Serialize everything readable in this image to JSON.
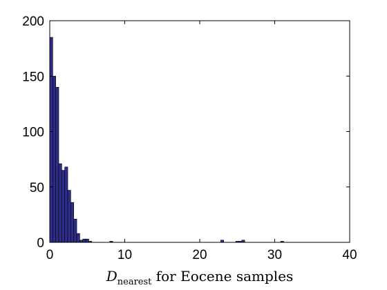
{
  "chart_data": {
    "type": "bar",
    "xlabel": {
      "symbol": "D",
      "subscript": "nearest",
      "suffix": " for Eocene samples"
    },
    "ylabel": "",
    "xlim": [
      0,
      40
    ],
    "ylim": [
      0,
      200
    ],
    "xticks": [
      "0",
      "10",
      "20",
      "30",
      "40"
    ],
    "yticks": [
      "0",
      "50",
      "100",
      "150",
      "200"
    ],
    "grid": false,
    "bin_width": 0.4,
    "bins": [
      {
        "x": 0.0,
        "count": 185
      },
      {
        "x": 0.4,
        "count": 150
      },
      {
        "x": 0.8,
        "count": 140
      },
      {
        "x": 1.2,
        "count": 71
      },
      {
        "x": 1.6,
        "count": 65
      },
      {
        "x": 2.0,
        "count": 68
      },
      {
        "x": 2.4,
        "count": 47
      },
      {
        "x": 2.8,
        "count": 36
      },
      {
        "x": 3.2,
        "count": 21
      },
      {
        "x": 3.6,
        "count": 8
      },
      {
        "x": 4.0,
        "count": 2
      },
      {
        "x": 4.4,
        "count": 3
      },
      {
        "x": 4.8,
        "count": 3
      },
      {
        "x": 5.2,
        "count": 1
      },
      {
        "x": 8.0,
        "count": 1
      },
      {
        "x": 22.8,
        "count": 2
      },
      {
        "x": 24.8,
        "count": 1
      },
      {
        "x": 25.2,
        "count": 1
      },
      {
        "x": 25.6,
        "count": 2
      },
      {
        "x": 30.8,
        "count": 1
      }
    ],
    "colors": {
      "bar_fill": "#2e2e8a",
      "bar_edge": "#000000",
      "axis": "#000000"
    }
  }
}
